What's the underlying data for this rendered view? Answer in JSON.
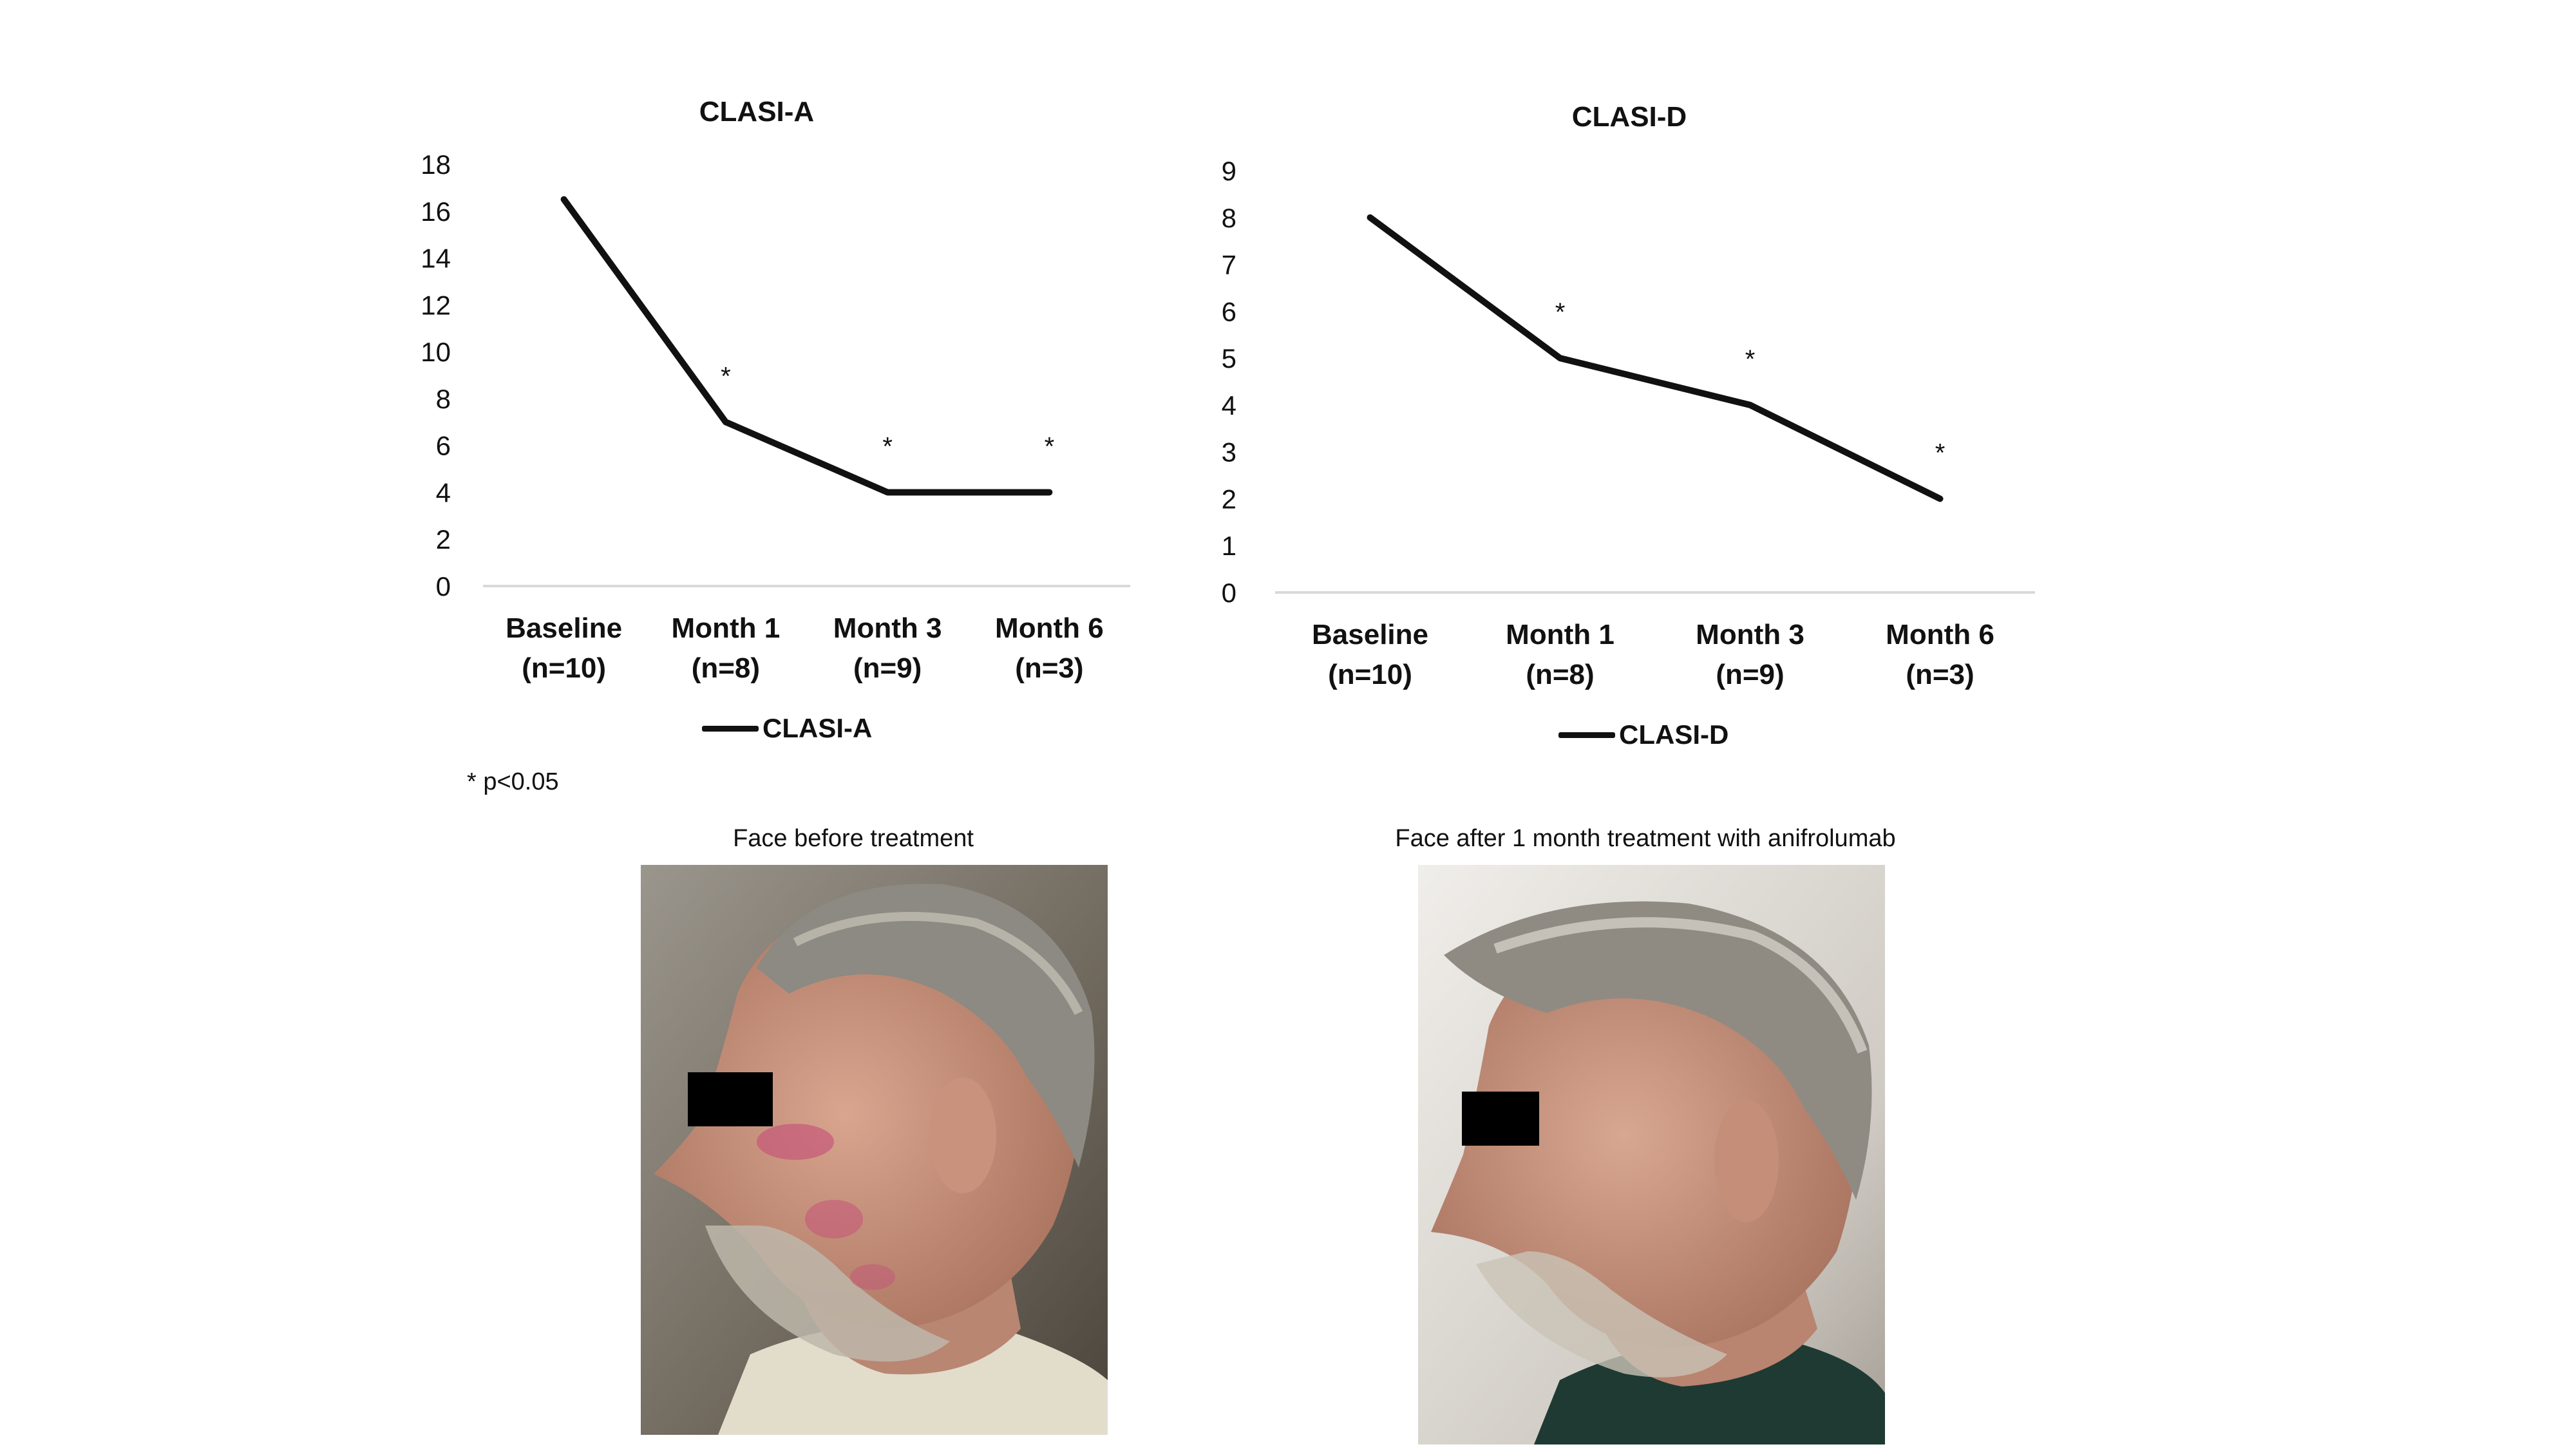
{
  "chart_data": [
    {
      "type": "line",
      "title": "CLASI-A",
      "categories": [
        "Baseline\n(n=10)",
        "Month 1\n(n=8)",
        "Month 3\n(n=9)",
        "Month 6\n(n=3)"
      ],
      "series": [
        {
          "name": "CLASI-A",
          "values": [
            16.5,
            7,
            4,
            4
          ]
        }
      ],
      "annotations": [
        "",
        "*",
        "*",
        "*"
      ],
      "ylim": [
        0,
        18
      ],
      "yticks": [
        0,
        2,
        4,
        6,
        8,
        10,
        12,
        14,
        16,
        18
      ],
      "legend": "bottom",
      "grid": false,
      "colors": [
        "#111111"
      ]
    },
    {
      "type": "line",
      "title": "CLASI-D",
      "categories": [
        "Baseline\n(n=10)",
        "Month 1\n(n=8)",
        "Month 3\n(n=9)",
        "Month 6\n(n=3)"
      ],
      "series": [
        {
          "name": "CLASI-D",
          "values": [
            8,
            5,
            4,
            2
          ]
        }
      ],
      "annotations": [
        "",
        "*",
        "*",
        "*"
      ],
      "ylim": [
        0,
        9
      ],
      "yticks": [
        0,
        1,
        2,
        3,
        4,
        5,
        6,
        7,
        8,
        9
      ],
      "legend": "bottom",
      "grid": false,
      "colors": [
        "#111111"
      ]
    }
  ],
  "footnote": "* p<0.05",
  "photos": {
    "before_caption": "Face before treatment",
    "after_caption": "Face after 1 month treatment with anifrolumab"
  },
  "colors": {
    "line": "#111111",
    "axis": "#d9d9d9"
  }
}
